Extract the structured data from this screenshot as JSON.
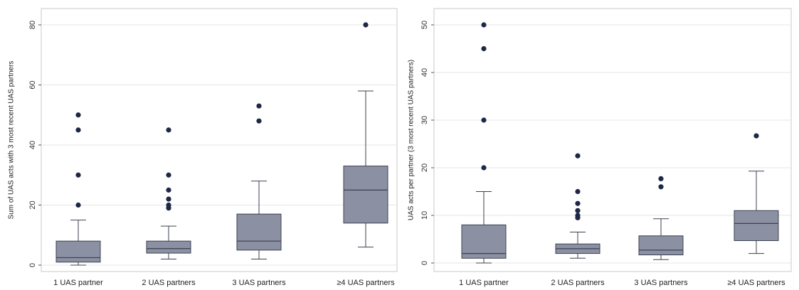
{
  "chart_data": [
    {
      "type": "box",
      "title": "",
      "xlabel": "",
      "ylabel": "Sum of UAS acts with 3 most recent UAS partners",
      "ylim": [
        -2,
        84
      ],
      "yticks": [
        0,
        20,
        40,
        60,
        80
      ],
      "grid": true,
      "categories": [
        "1 UAS partner",
        "2 UAS partners",
        "3 UAS partners",
        "≥4 UAS partners"
      ],
      "boxes": [
        {
          "category": "1 UAS partner",
          "whisker_low": 0,
          "q1": 1,
          "median": 2.5,
          "q3": 8,
          "whisker_high": 15,
          "outliers": [
            20,
            30,
            45,
            50
          ]
        },
        {
          "category": "2 UAS partners",
          "whisker_low": 2,
          "q1": 4,
          "median": 5.5,
          "q3": 8,
          "whisker_high": 13,
          "outliers": [
            19,
            20,
            22,
            25,
            30,
            45
          ]
        },
        {
          "category": "3 UAS partners",
          "whisker_low": 2,
          "q1": 5,
          "median": 8,
          "q3": 17,
          "whisker_high": 28,
          "outliers": [
            48,
            53
          ]
        },
        {
          "category": "≥4 UAS partners",
          "whisker_low": 6,
          "q1": 14,
          "median": 25,
          "q3": 33,
          "whisker_high": 58,
          "outliers": [
            80
          ]
        }
      ]
    },
    {
      "type": "box",
      "title": "",
      "xlabel": "",
      "ylabel": "UAS acts per partner (3 most recent UAS partners)",
      "ylim": [
        -1,
        52
      ],
      "yticks": [
        0,
        10,
        20,
        30,
        40,
        50
      ],
      "grid": true,
      "categories": [
        "1 UAS partner",
        "2 UAS partners",
        "3 UAS partners",
        "≥4 UAS partners"
      ],
      "boxes": [
        {
          "category": "1 UAS partner",
          "whisker_low": 0,
          "q1": 1,
          "median": 2,
          "q3": 8,
          "whisker_high": 15,
          "outliers": [
            20,
            30,
            45,
            50
          ]
        },
        {
          "category": "2 UAS partners",
          "whisker_low": 1,
          "q1": 2,
          "median": 3,
          "q3": 4,
          "whisker_high": 6.5,
          "outliers": [
            9.5,
            10,
            11,
            12.5,
            15,
            22.5
          ]
        },
        {
          "category": "3 UAS partners",
          "whisker_low": 0.7,
          "q1": 1.7,
          "median": 2.7,
          "q3": 5.7,
          "whisker_high": 9.3,
          "outliers": [
            16,
            17.7
          ]
        },
        {
          "category": "≥4 UAS partners",
          "whisker_low": 2,
          "q1": 4.7,
          "median": 8.3,
          "q3": 11,
          "whisker_high": 19.3,
          "outliers": [
            26.7
          ]
        }
      ]
    }
  ],
  "colors": {
    "box_fill": "#8b91a3",
    "box_stroke": "#3c4150",
    "outlier": "#1e2746",
    "grid": "#e6e6e6",
    "frame": "#c8c8c8"
  }
}
